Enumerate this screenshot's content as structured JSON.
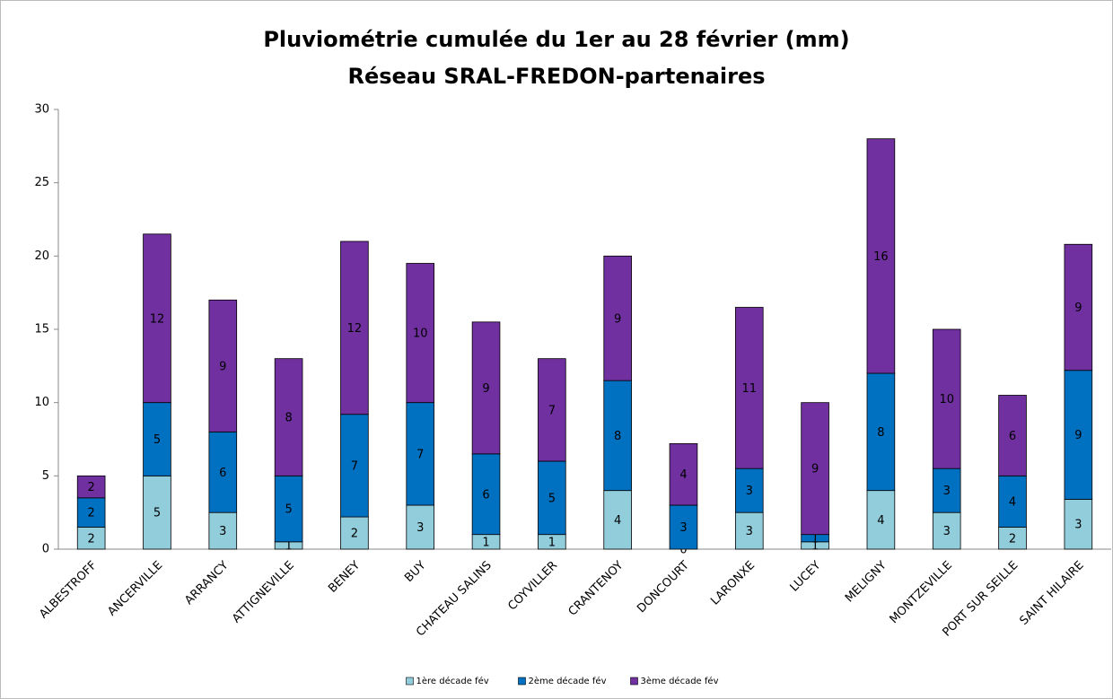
{
  "chart_data": {
    "type": "stacked_bar",
    "title": "Pluviométrie cumulée du 1er au 28 février (mm)",
    "subtitle": "Réseau SRAL-FREDON-partenaires",
    "categories": [
      "ALBESTROFF",
      "ANCERVILLE",
      "ARRANCY",
      "ATTIGNEVILLE",
      "BENEY",
      "BUY",
      "CHATEAU SALINS",
      "COYVILLER",
      "CRANTENOY",
      "DONCOURT",
      "LARONXE",
      "LUCEY",
      "MELIGNY",
      "MONTZEVILLE",
      "PORT SUR SEILLE",
      "SAINT HILAIRE"
    ],
    "series": [
      {
        "name": "1ère décade fév",
        "color": "#92cddc",
        "values": [
          1.5,
          5,
          2.5,
          0.5,
          2.2,
          3,
          1,
          1,
          4,
          0,
          2.5,
          0.5,
          4,
          2.5,
          1.5,
          3.4
        ],
        "value_labels": [
          "2",
          "5",
          "3",
          "1",
          "2",
          "3",
          "1",
          "1",
          "4",
          "0",
          "3",
          "1",
          "4",
          "3",
          "2",
          "3"
        ]
      },
      {
        "name": "2ème décade fév",
        "color": "#0070c0",
        "values": [
          2,
          5,
          5.5,
          4.5,
          7,
          7,
          5.5,
          5,
          7.5,
          3,
          3,
          0.5,
          8,
          3,
          3.5,
          8.8
        ],
        "value_labels": [
          "2",
          "5",
          "6",
          "5",
          "7",
          "7",
          "6",
          "5",
          "8",
          "3",
          "3",
          "1",
          "8",
          "3",
          "4",
          "9"
        ]
      },
      {
        "name": "3ème décade fév",
        "color": "#7030a0",
        "values": [
          1.5,
          11.5,
          9,
          8,
          11.8,
          9.5,
          9,
          7,
          8.5,
          4.2,
          11,
          9,
          16,
          9.5,
          5.5,
          8.6
        ],
        "value_labels": [
          "2",
          "12",
          "9",
          "8",
          "12",
          "10",
          "9",
          "7",
          "9",
          "4",
          "11",
          "9",
          "16",
          "10",
          "6",
          "9"
        ]
      }
    ],
    "ylim": [
      0,
      30
    ],
    "yticks": [
      0,
      5,
      10,
      15,
      20,
      25,
      30
    ],
    "legend": "bottom"
  }
}
